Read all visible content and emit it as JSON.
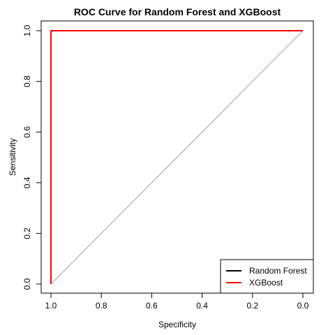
{
  "chart_data": {
    "type": "line",
    "title": "ROC Curve for Random Forest and XGBoost",
    "xlabel": "Specificity",
    "ylabel": "Sensitivity",
    "xlim": [
      1.0,
      0.0
    ],
    "ylim": [
      0.0,
      1.0
    ],
    "x_reversed": true,
    "grid": false,
    "x_ticks": [
      "1.0",
      "0.8",
      "0.6",
      "0.4",
      "0.2",
      "0.0"
    ],
    "y_ticks": [
      "0.0",
      "0.2",
      "0.4",
      "0.6",
      "0.8",
      "1.0"
    ],
    "reference_line": {
      "x": [
        1.0,
        0.0
      ],
      "y": [
        0.0,
        1.0
      ],
      "color": "#a0a0a0"
    },
    "legend_position": "bottom-right",
    "series": [
      {
        "name": "Random Forest",
        "color": "#000000",
        "specificity": [
          1.0,
          1.0,
          0.0
        ],
        "sensitivity": [
          0.0,
          1.0,
          1.0
        ]
      },
      {
        "name": "XGBoost",
        "color": "#ff0000",
        "specificity": [
          1.0,
          1.0,
          0.0
        ],
        "sensitivity": [
          0.0,
          1.0,
          1.0
        ]
      }
    ]
  }
}
